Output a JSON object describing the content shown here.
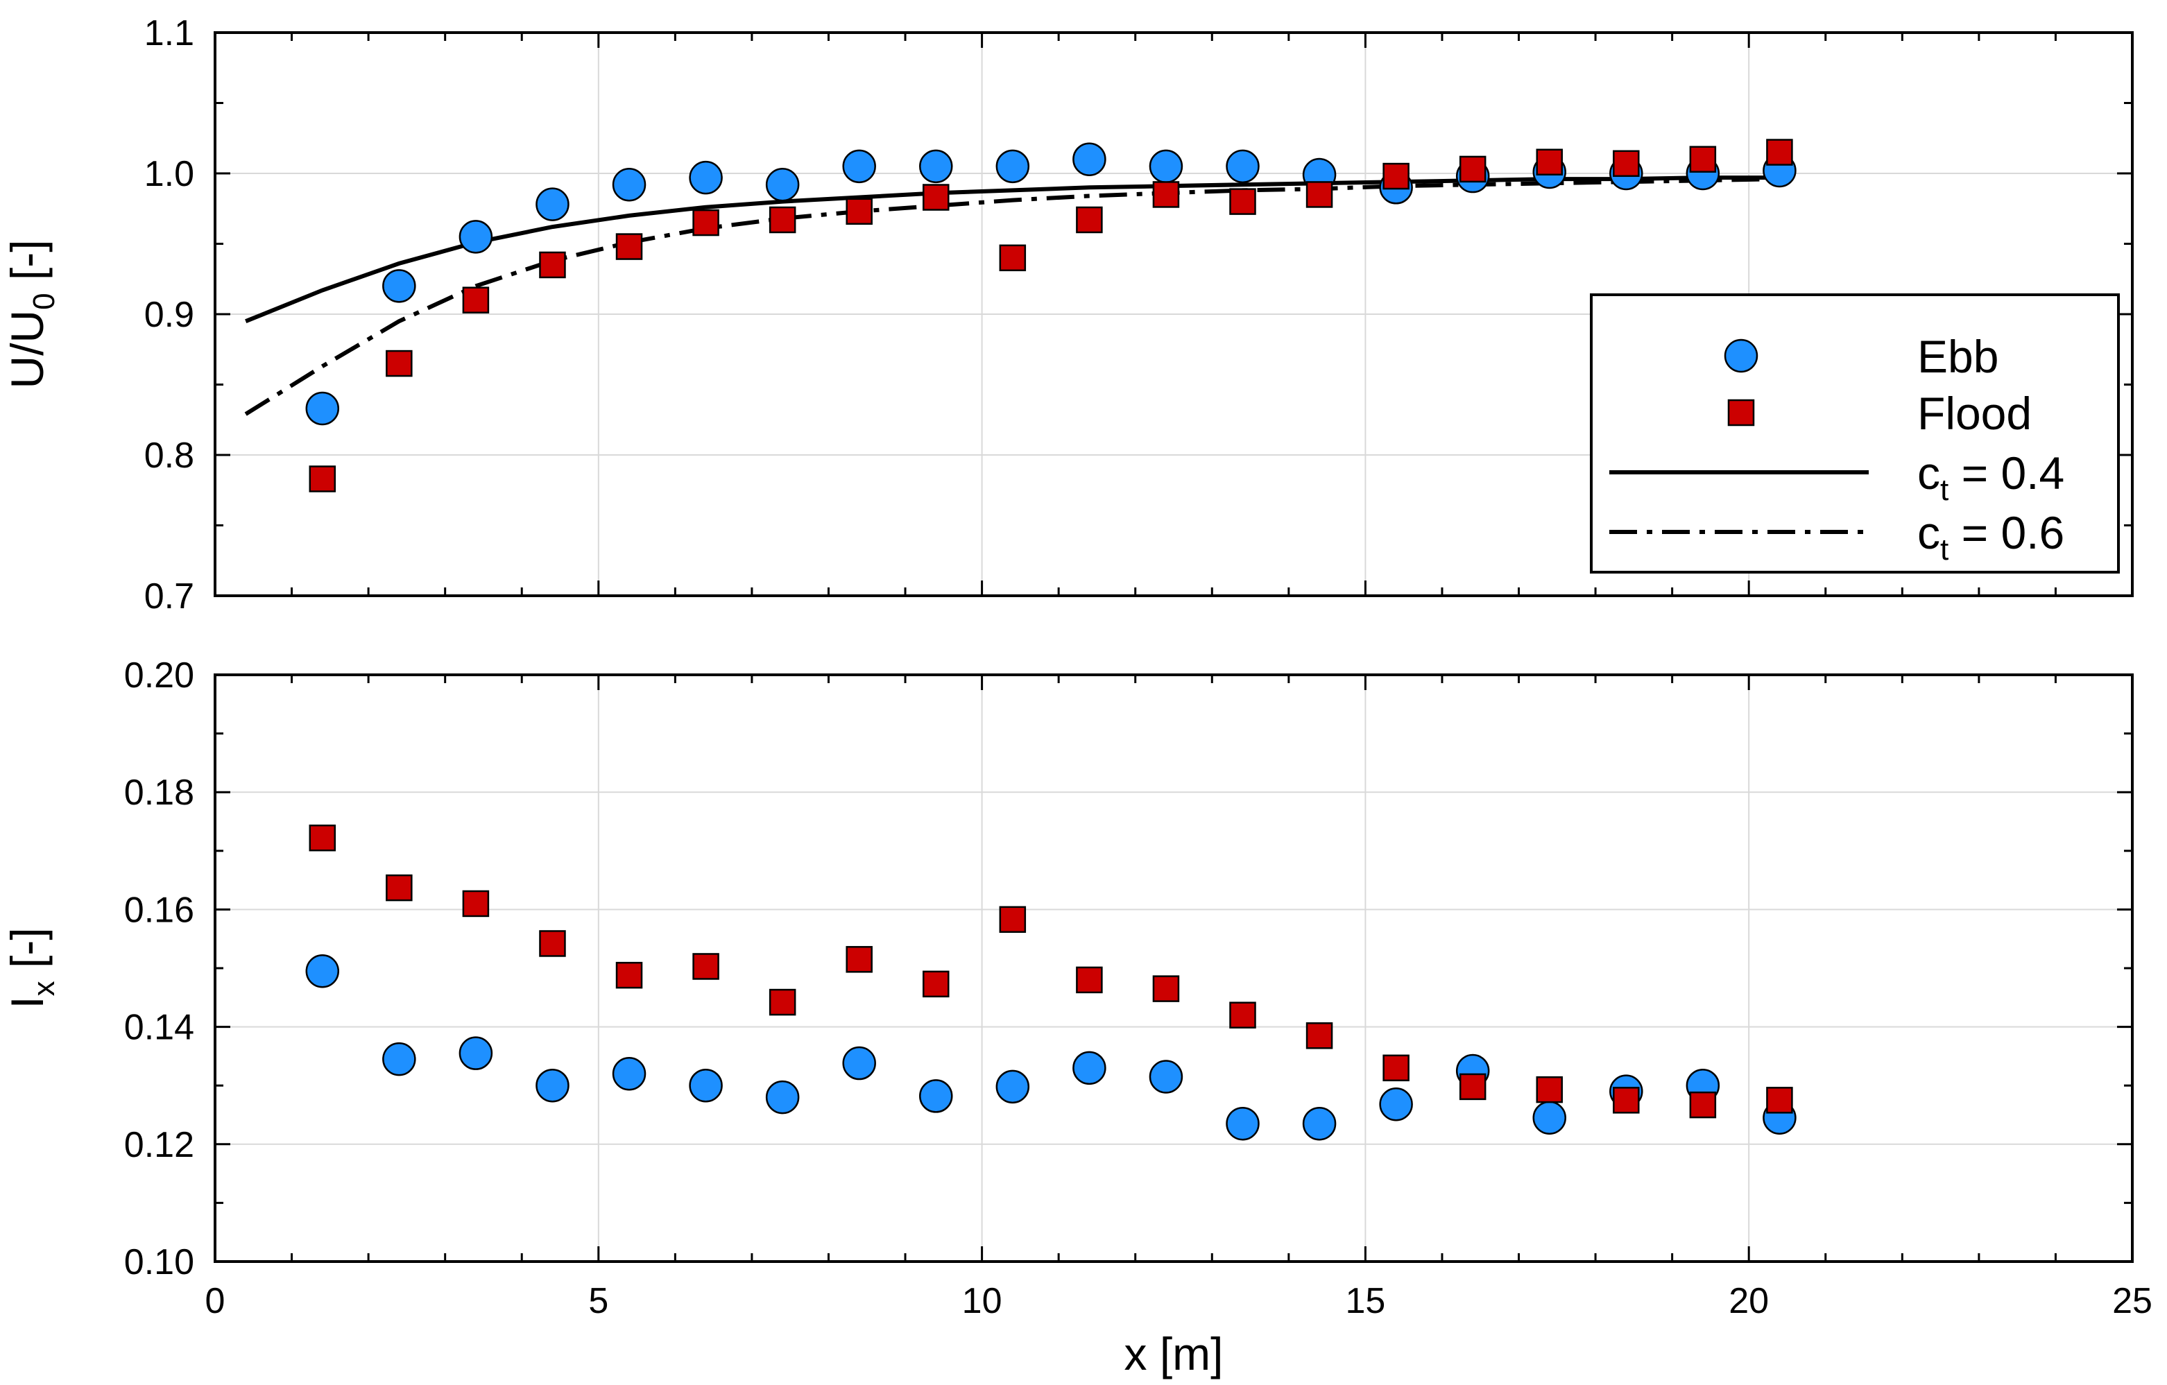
{
  "colors": {
    "ebb_fill": "#1e90ff",
    "flood_fill": "#cc0000",
    "marker_edge": "#000000",
    "grid": "#d9d9d9",
    "axis": "#000000"
  },
  "chart_data": [
    {
      "type": "scatter",
      "id": "velocity",
      "ylabel_main": "U/U",
      "ylabel_sub": "0",
      "ylabel_tail": " [-]",
      "xlim": [
        0,
        25
      ],
      "ylim": [
        0.7,
        1.1
      ],
      "xticks": [
        "0",
        "5",
        "10",
        "15",
        "20",
        "25"
      ],
      "yticks": [
        "0.7",
        "0.8",
        "0.9",
        "1.0",
        "1.1"
      ],
      "grid": true,
      "legend_position": "right",
      "legend": [
        {
          "label": "Ebb",
          "sub": "",
          "tail": "",
          "kind": "circle"
        },
        {
          "label": "Flood",
          "sub": "",
          "tail": "",
          "kind": "square"
        },
        {
          "label": "c",
          "sub": "t",
          "tail": " = 0.4",
          "kind": "solid"
        },
        {
          "label": "c",
          "sub": "t",
          "tail": " = 0.6",
          "kind": "dashdot"
        }
      ],
      "series": [
        {
          "name": "Ebb",
          "marker": "circle",
          "x": [
            1.4,
            2.4,
            3.4,
            4.4,
            5.4,
            6.4,
            7.4,
            8.4,
            9.4,
            10.4,
            11.4,
            12.4,
            13.4,
            14.4,
            15.4,
            16.4,
            17.4,
            18.4,
            19.4,
            20.4
          ],
          "y": [
            0.833,
            0.92,
            0.955,
            0.978,
            0.992,
            0.997,
            0.992,
            1.005,
            1.005,
            1.005,
            1.01,
            1.005,
            1.005,
            0.999,
            0.99,
            0.998,
            1.001,
            1.0,
            1.0,
            1.002
          ]
        },
        {
          "name": "Flood",
          "marker": "square",
          "x": [
            1.4,
            2.4,
            3.4,
            4.4,
            5.4,
            6.4,
            7.4,
            8.4,
            9.4,
            10.4,
            11.4,
            12.4,
            13.4,
            14.4,
            15.4,
            16.4,
            17.4,
            18.4,
            19.4,
            20.4
          ],
          "y": [
            0.783,
            0.865,
            0.91,
            0.935,
            0.948,
            0.965,
            0.967,
            0.973,
            0.983,
            0.94,
            0.967,
            0.985,
            0.98,
            0.985,
            0.998,
            1.003,
            1.008,
            1.007,
            1.01,
            1.015
          ]
        },
        {
          "name": "c_t = 0.4",
          "line": "solid",
          "x": [
            0.4,
            1.4,
            2.4,
            3.4,
            4.4,
            5.4,
            6.4,
            7.4,
            8.4,
            9.4,
            10.4,
            11.4,
            12.4,
            13.4,
            14.4,
            15.4,
            16.4,
            17.4,
            18.4,
            19.4,
            20.4
          ],
          "y": [
            0.895,
            0.917,
            0.936,
            0.951,
            0.962,
            0.97,
            0.976,
            0.98,
            0.983,
            0.986,
            0.988,
            0.99,
            0.991,
            0.992,
            0.993,
            0.994,
            0.995,
            0.996,
            0.996,
            0.997,
            0.997
          ]
        },
        {
          "name": "c_t = 0.6",
          "line": "dashdot",
          "x": [
            0.4,
            1.4,
            2.4,
            3.4,
            4.4,
            5.4,
            6.4,
            7.4,
            8.4,
            9.4,
            10.4,
            11.4,
            12.4,
            13.4,
            14.4,
            15.4,
            16.4,
            17.4,
            18.4,
            19.4,
            20.4
          ],
          "y": [
            0.829,
            0.863,
            0.895,
            0.92,
            0.938,
            0.951,
            0.961,
            0.968,
            0.973,
            0.977,
            0.981,
            0.984,
            0.986,
            0.988,
            0.989,
            0.991,
            0.992,
            0.993,
            0.994,
            0.995,
            0.996
          ]
        }
      ]
    },
    {
      "type": "scatter",
      "id": "turbulence",
      "ylabel_main": "I",
      "ylabel_sub": "x",
      "ylabel_tail": " [-]",
      "xlabel": "x [m]",
      "xlim": [
        0,
        25
      ],
      "ylim": [
        0.1,
        0.2
      ],
      "xticks": [
        "0",
        "5",
        "10",
        "15",
        "20",
        "25"
      ],
      "yticks": [
        "0.10",
        "0.12",
        "0.14",
        "0.16",
        "0.18",
        "0.20"
      ],
      "grid": true,
      "series": [
        {
          "name": "Ebb",
          "marker": "circle",
          "x": [
            1.4,
            2.4,
            3.4,
            4.4,
            5.4,
            6.4,
            7.4,
            8.4,
            9.4,
            10.4,
            11.4,
            12.4,
            13.4,
            14.4,
            15.4,
            16.4,
            17.4,
            18.4,
            19.4,
            20.4
          ],
          "y": [
            0.1495,
            0.1345,
            0.1355,
            0.13,
            0.132,
            0.13,
            0.128,
            0.1338,
            0.1282,
            0.1298,
            0.133,
            0.1315,
            0.1235,
            0.1235,
            0.1268,
            0.1325,
            0.1245,
            0.129,
            0.13,
            0.1245
          ]
        },
        {
          "name": "Flood",
          "marker": "square",
          "x": [
            1.4,
            2.4,
            3.4,
            4.4,
            5.4,
            6.4,
            7.4,
            8.4,
            9.4,
            10.4,
            11.4,
            12.4,
            13.4,
            14.4,
            15.4,
            16.4,
            17.4,
            18.4,
            19.4,
            20.4
          ],
          "y": [
            0.1722,
            0.1637,
            0.161,
            0.1542,
            0.1488,
            0.1503,
            0.1442,
            0.1515,
            0.1473,
            0.1583,
            0.148,
            0.1465,
            0.142,
            0.1385,
            0.133,
            0.1298,
            0.1293,
            0.1275,
            0.1267,
            0.1275
          ]
        }
      ]
    }
  ]
}
